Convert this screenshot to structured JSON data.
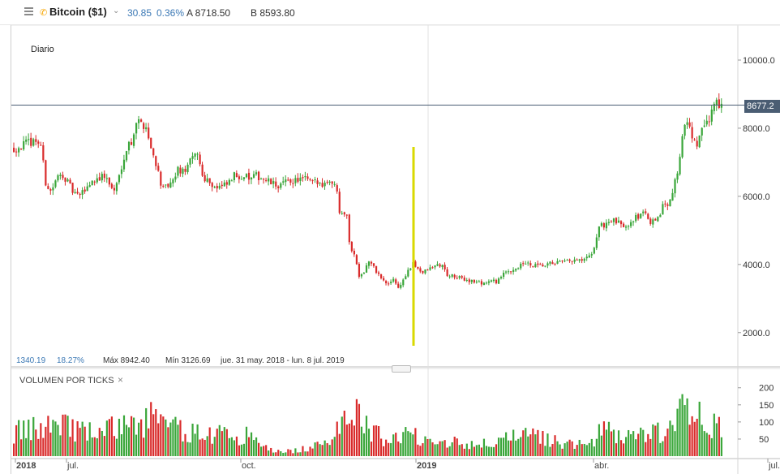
{
  "toolbar": {
    "instrument": "Bitcoin ($1)",
    "change": "30.85",
    "change_pct": "0.36%",
    "ask": "A 8718.50",
    "bid": "B 8593.80",
    "icons": [
      "menu-icon",
      "phone-icon",
      "chevron-down-icon"
    ]
  },
  "price_panel": {
    "period": "Diario",
    "current_price_tag": "8677.2",
    "stats": {
      "change": "1340.19",
      "change_pct": "18.27%",
      "max": "Máx 8942.40",
      "min": "Mín 3126.69",
      "range": "jue. 31 may. 2018 - lun. 8 jul. 2019"
    }
  },
  "volume_panel": {
    "title": "VOLUMEN POR TICKS",
    "close": "×"
  },
  "colors": {
    "up": "#3aa63a",
    "down": "#d92b2b",
    "highlight": "#d9d900",
    "price_line": "#4a5d73"
  },
  "chart_data": [
    {
      "type": "candlestick",
      "ylim": [
        1500,
        10500
      ],
      "yticks": [
        "10000.0",
        "8000.0",
        "6000.0",
        "4000.0",
        "2000.0"
      ],
      "ytick_values": [
        10000,
        8000,
        6000,
        4000,
        2000
      ],
      "xticks": [
        "2018",
        "jul.",
        "oct.",
        "2019",
        "abr.",
        "jul."
      ],
      "current_price": 8677.2,
      "max": 8942.4,
      "min": 3126.69,
      "close_path": [
        [
          0,
          7400
        ],
        [
          5,
          7550
        ],
        [
          9,
          7650
        ],
        [
          11,
          7500
        ],
        [
          13,
          6400
        ],
        [
          15,
          6150
        ],
        [
          18,
          6550
        ],
        [
          20,
          6650
        ],
        [
          22,
          6400
        ],
        [
          24,
          6150
        ],
        [
          26,
          6000
        ],
        [
          28,
          6100
        ],
        [
          30,
          6300
        ],
        [
          33,
          6500
        ],
        [
          37,
          6600
        ],
        [
          40,
          6250
        ],
        [
          41,
          6150
        ],
        [
          43,
          6600
        ],
        [
          45,
          7200
        ],
        [
          47,
          7550
        ],
        [
          48,
          7600
        ],
        [
          50,
          8200
        ],
        [
          52,
          8150
        ],
        [
          54,
          8050
        ],
        [
          56,
          7400
        ],
        [
          58,
          7000
        ],
        [
          60,
          6400
        ],
        [
          61,
          6200
        ],
        [
          63,
          6300
        ],
        [
          65,
          6400
        ],
        [
          67,
          6800
        ],
        [
          69,
          6700
        ],
        [
          72,
          7000
        ],
        [
          75,
          7300
        ],
        [
          77,
          6600
        ],
        [
          79,
          6500
        ],
        [
          81,
          6350
        ],
        [
          83,
          6250
        ],
        [
          86,
          6300
        ],
        [
          88,
          6400
        ],
        [
          90,
          6600
        ],
        [
          94,
          6600
        ],
        [
          97,
          6500
        ],
        [
          99,
          6600
        ],
        [
          101,
          6550
        ],
        [
          103,
          6450
        ],
        [
          105,
          6400
        ],
        [
          107,
          6300
        ],
        [
          109,
          6350
        ],
        [
          113,
          6450
        ],
        [
          117,
          6500
        ],
        [
          119,
          6500
        ],
        [
          121,
          6420
        ],
        [
          125,
          6380
        ],
        [
          127,
          6400
        ],
        [
          129,
          6500
        ],
        [
          130,
          6400
        ],
        [
          131,
          6300
        ],
        [
          132,
          6200
        ],
        [
          133,
          5600
        ],
        [
          136,
          5500
        ],
        [
          137,
          4600
        ],
        [
          139,
          4300
        ],
        [
          140,
          4000
        ],
        [
          141,
          3700
        ],
        [
          143,
          3800
        ],
        [
          145,
          4100
        ],
        [
          147,
          3900
        ],
        [
          149,
          3700
        ],
        [
          151,
          3500
        ],
        [
          153,
          3400
        ],
        [
          155,
          3600
        ],
        [
          157,
          3300
        ],
        [
          159,
          3550
        ],
        [
          161,
          3800
        ],
        [
          163,
          4000
        ],
        [
          165,
          3900
        ],
        [
          167,
          3750
        ],
        [
          169,
          3850
        ],
        [
          171,
          3900
        ],
        [
          173,
          4000
        ],
        [
          175,
          3950
        ],
        [
          177,
          3700
        ],
        [
          179,
          3650
        ],
        [
          182,
          3600
        ],
        [
          185,
          3550
        ],
        [
          188,
          3500
        ],
        [
          191,
          3450
        ],
        [
          194,
          3500
        ],
        [
          197,
          3500
        ],
        [
          199,
          3650
        ],
        [
          202,
          3800
        ],
        [
          205,
          3900
        ],
        [
          208,
          4000
        ],
        [
          209,
          4050
        ],
        [
          211,
          3950
        ],
        [
          214,
          3950
        ],
        [
          217,
          3950
        ],
        [
          220,
          4050
        ],
        [
          224,
          4050
        ],
        [
          228,
          4100
        ],
        [
          232,
          4100
        ],
        [
          236,
          4250
        ],
        [
          239,
          5100
        ],
        [
          242,
          5200
        ],
        [
          244,
          5300
        ],
        [
          247,
          5200
        ],
        [
          250,
          5150
        ],
        [
          253,
          5350
        ],
        [
          255,
          5400
        ],
        [
          257,
          5600
        ],
        [
          259,
          5300
        ],
        [
          262,
          5200
        ],
        [
          265,
          5700
        ],
        [
          267,
          5800
        ],
        [
          269,
          6200
        ],
        [
          271,
          6700
        ],
        [
          273,
          7800
        ],
        [
          274,
          8050
        ],
        [
          275,
          8100
        ],
        [
          277,
          7800
        ],
        [
          279,
          7400
        ],
        [
          281,
          8000
        ],
        [
          283,
          8100
        ],
        [
          284,
          8200
        ],
        [
          285,
          8600
        ],
        [
          287,
          8800
        ],
        [
          289,
          8677
        ]
      ]
    },
    {
      "type": "bar",
      "title": "VOLUMEN POR TICKS",
      "ylim": [
        0,
        220
      ],
      "yticks": [
        "200",
        "150",
        "100",
        "50"
      ],
      "ytick_values": [
        200,
        150,
        100,
        50
      ],
      "level_path": [
        [
          0,
          80
        ],
        [
          10,
          90
        ],
        [
          18,
          130
        ],
        [
          26,
          85
        ],
        [
          35,
          75
        ],
        [
          43,
          105
        ],
        [
          50,
          95
        ],
        [
          56,
          135
        ],
        [
          62,
          100
        ],
        [
          72,
          80
        ],
        [
          82,
          75
        ],
        [
          92,
          70
        ],
        [
          98,
          65
        ],
        [
          102,
          30
        ],
        [
          108,
          15
        ],
        [
          116,
          20
        ],
        [
          122,
          30
        ],
        [
          128,
          40
        ],
        [
          132,
          120
        ],
        [
          136,
          150
        ],
        [
          139,
          155
        ],
        [
          142,
          125
        ],
        [
          146,
          80
        ],
        [
          152,
          60
        ],
        [
          160,
          70
        ],
        [
          168,
          65
        ],
        [
          176,
          50
        ],
        [
          184,
          45
        ],
        [
          192,
          40
        ],
        [
          200,
          55
        ],
        [
          208,
          65
        ],
        [
          214,
          65
        ],
        [
          222,
          50
        ],
        [
          230,
          35
        ],
        [
          236,
          45
        ],
        [
          240,
          85
        ],
        [
          246,
          75
        ],
        [
          252,
          70
        ],
        [
          260,
          75
        ],
        [
          266,
          80
        ],
        [
          270,
          95
        ],
        [
          274,
          180
        ],
        [
          276,
          160
        ],
        [
          279,
          150
        ],
        [
          282,
          125
        ],
        [
          285,
          110
        ],
        [
          288,
          120
        ]
      ]
    }
  ]
}
